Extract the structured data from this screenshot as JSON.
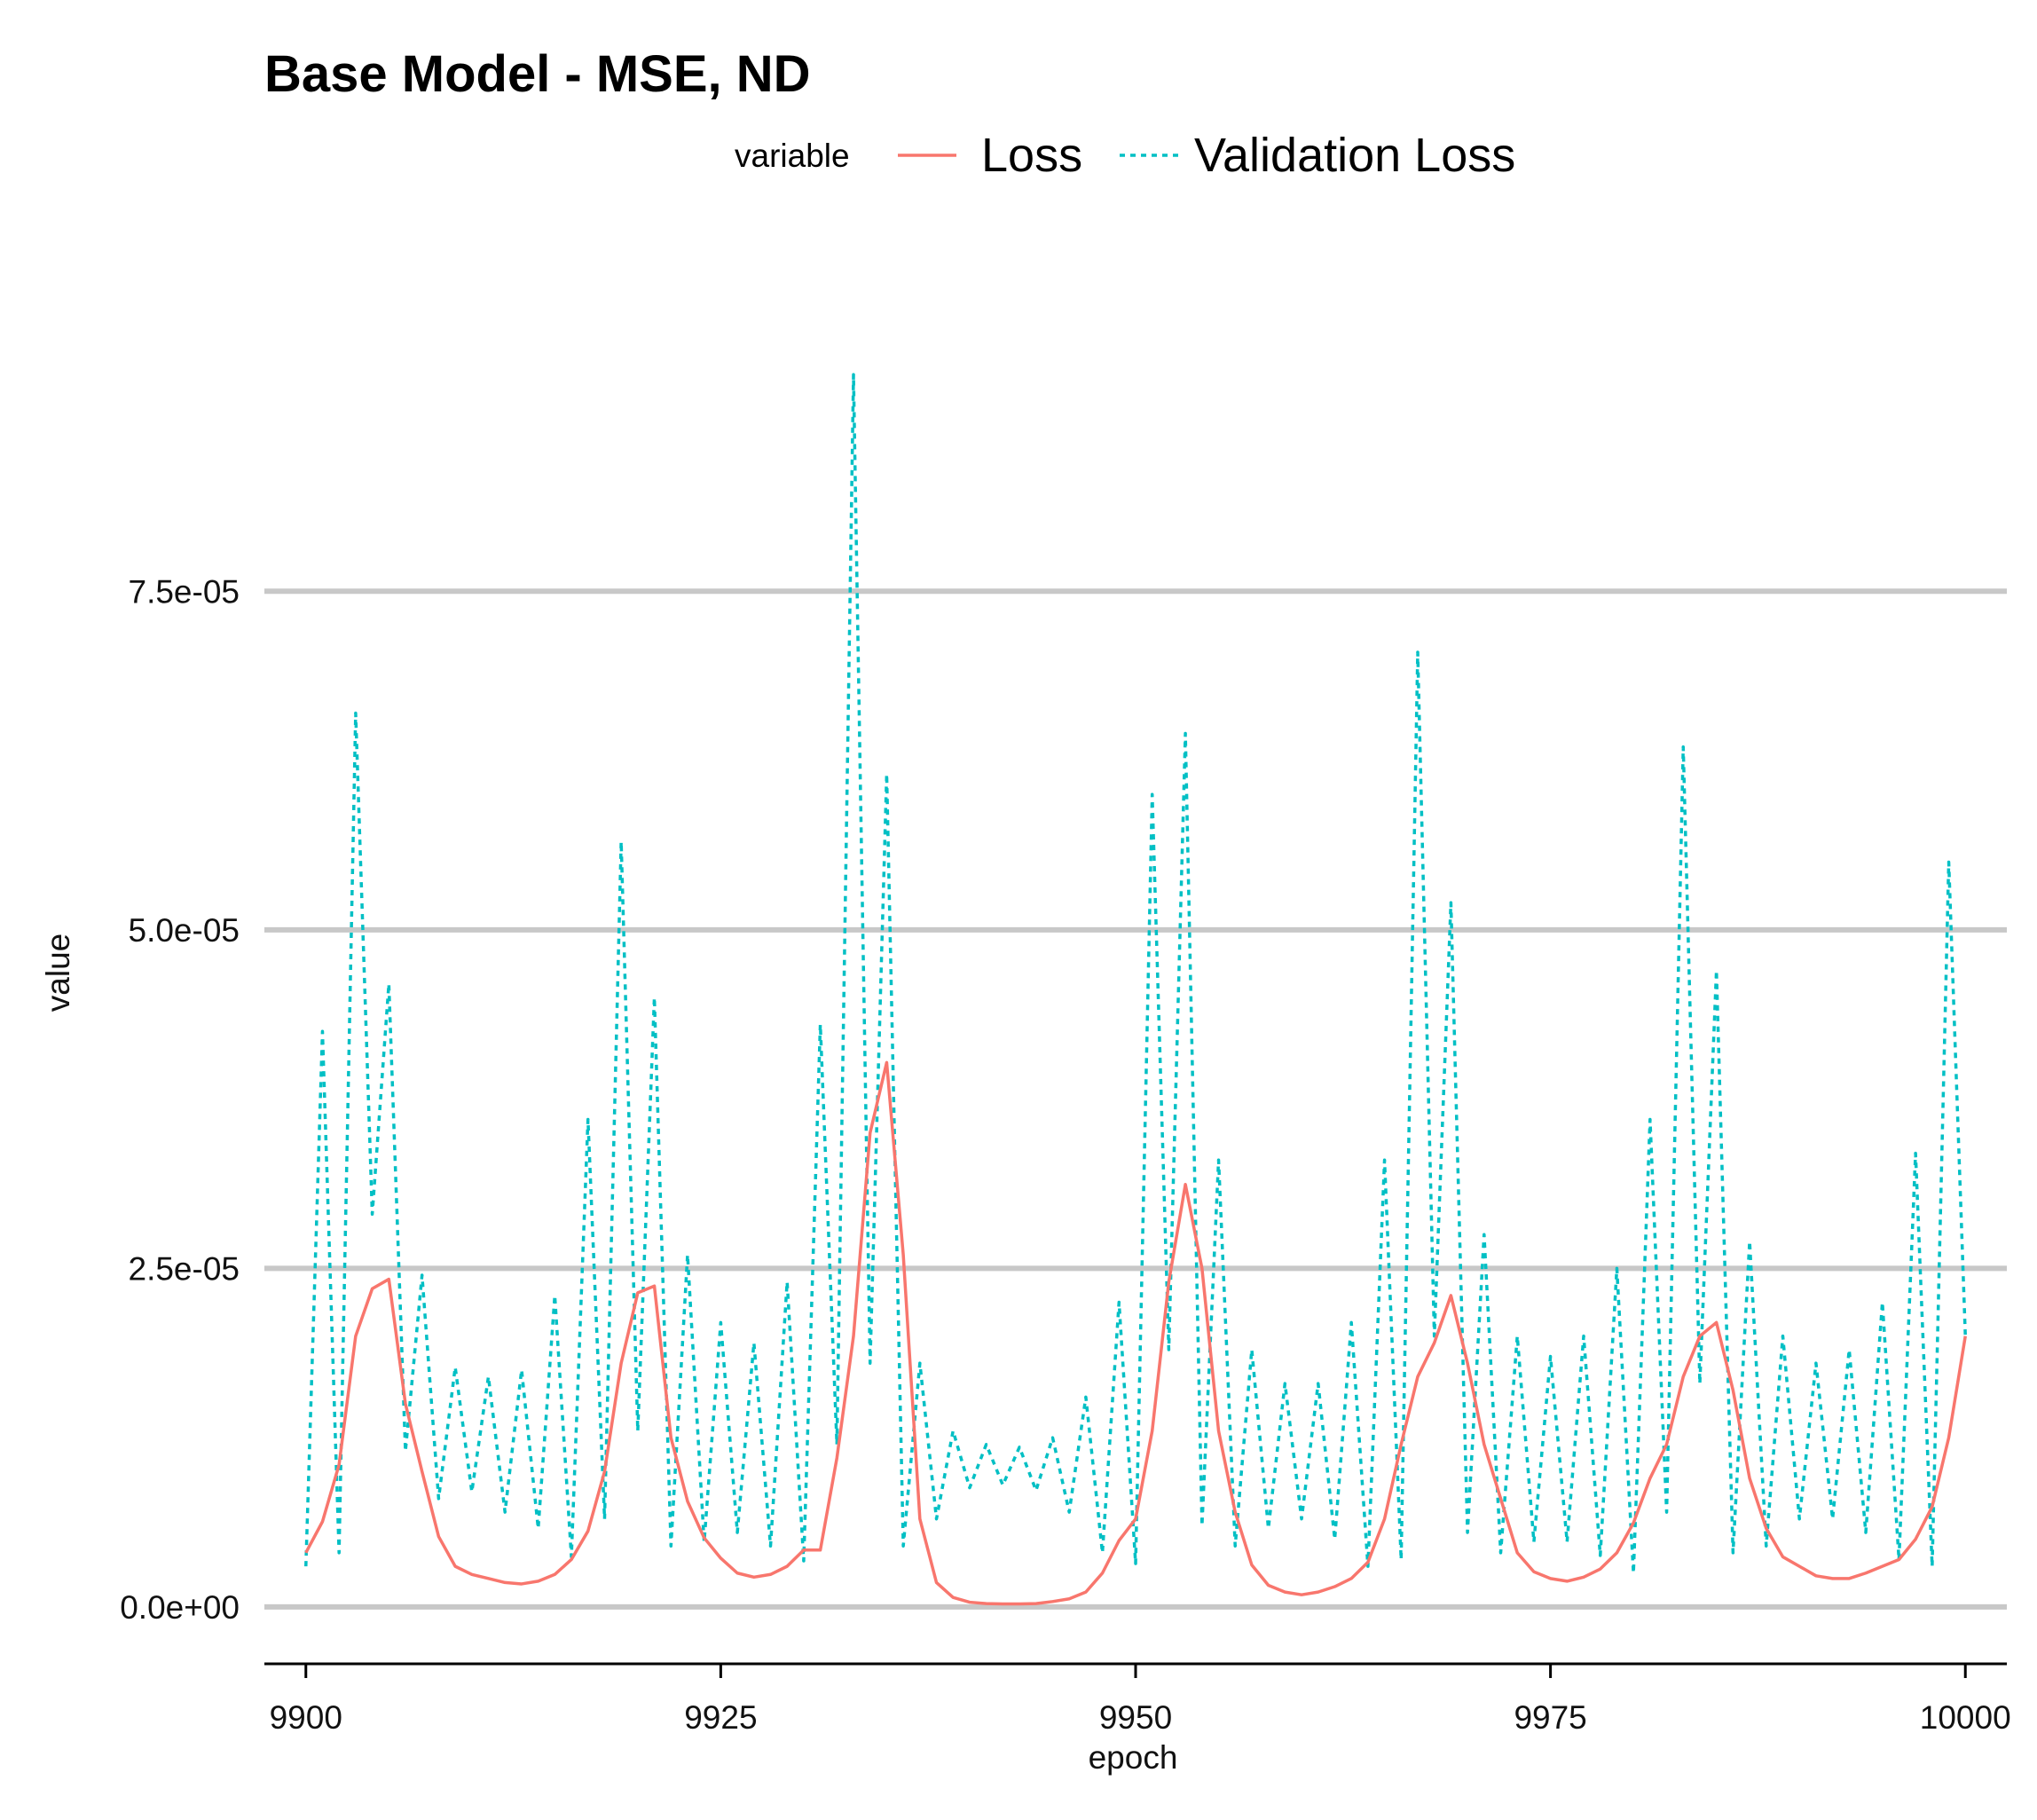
{
  "chart_data": {
    "type": "line",
    "title": "Base Model - MSE, ND",
    "xlabel": "epoch",
    "ylabel": "value",
    "legend_title": "variable",
    "legend_position": "top",
    "grid": "horizontal major",
    "xlim": [
      9897.5,
      10002.5
    ],
    "ylim": [
      -4.2e-06,
      9.9e-05
    ],
    "x_ticks": [
      9900,
      9925,
      9950,
      9975,
      10000
    ],
    "x_tick_labels": [
      "9900",
      "9925",
      "9950",
      "9975",
      "10000"
    ],
    "y_ticks": [
      0,
      2.5e-05,
      5e-05,
      7.5e-05
    ],
    "y_tick_labels": [
      "0.0e+00",
      "2.5e-05",
      "5.0e-05",
      "7.5e-05"
    ],
    "x": [
      9900,
      9901,
      9902,
      9903,
      9904,
      9905,
      9906,
      9907,
      9908,
      9909,
      9910,
      9911,
      9912,
      9913,
      9914,
      9915,
      9916,
      9917,
      9918,
      9919,
      9920,
      9921,
      9922,
      9923,
      9924,
      9925,
      9926,
      9927,
      9928,
      9929,
      9930,
      9931,
      9932,
      9933,
      9934,
      9935,
      9936,
      9937,
      9938,
      9939,
      9940,
      9941,
      9942,
      9943,
      9944,
      9945,
      9946,
      9947,
      9948,
      9949,
      9950,
      9951,
      9952,
      9953,
      9954,
      9955,
      9956,
      9957,
      9958,
      9959,
      9960,
      9961,
      9962,
      9963,
      9964,
      9965,
      9966,
      9967,
      9968,
      9969,
      9970,
      9971,
      9972,
      9973,
      9974,
      9975,
      9976,
      9977,
      9978,
      9979,
      9980,
      9981,
      9982,
      9983,
      9984,
      9985,
      9986,
      9987,
      9988,
      9989,
      9990,
      9991,
      9992,
      9993,
      9994,
      9995,
      9996,
      9997,
      9998,
      9999,
      10000
    ],
    "series": [
      {
        "name": "Loss",
        "color": "#F8766D",
        "linetype": "solid",
        "values": [
          4e-06,
          6.3e-06,
          1.05e-05,
          2e-05,
          2.35e-05,
          2.42e-05,
          1.5e-05,
          1e-05,
          5.2e-06,
          3e-06,
          2.4e-06,
          2.1e-06,
          1.8e-06,
          1.7e-06,
          1.9e-06,
          2.4e-06,
          3.5e-06,
          5.6e-06,
          1e-05,
          1.8e-05,
          2.32e-05,
          2.37e-05,
          1.25e-05,
          7.8e-06,
          5.1e-06,
          3.6e-06,
          2.5e-06,
          2.2e-06,
          2.4e-06,
          3e-06,
          4.2e-06,
          4.2e-06,
          1.1e-05,
          2e-05,
          3.5e-05,
          4.02e-05,
          2.6e-05,
          6.5e-06,
          1.8e-06,
          7e-07,
          3.5e-07,
          2.5e-07,
          2.2e-07,
          2.2e-07,
          2.5e-07,
          4e-07,
          6e-07,
          1.1e-06,
          2.5e-06,
          4.9e-06,
          6.5e-06,
          1.3e-05,
          2.4e-05,
          3.12e-05,
          2.5e-05,
          1.3e-05,
          7e-06,
          3.1e-06,
          1.6e-06,
          1.1e-06,
          9e-07,
          1.1e-06,
          1.5e-06,
          2.1e-06,
          3.3e-06,
          6.5e-06,
          1.2e-05,
          1.7e-05,
          1.95e-05,
          2.3e-05,
          1.8e-05,
          1.2e-05,
          8e-06,
          4e-06,
          2.6e-06,
          2.1e-06,
          1.9e-06,
          2.2e-06,
          2.8e-06,
          4e-06,
          6.2e-06,
          9.5e-06,
          1.2e-05,
          1.7e-05,
          2e-05,
          2.1e-05,
          1.6e-05,
          9.5e-06,
          5.8e-06,
          3.7e-06,
          3e-06,
          2.3e-06,
          2.1e-06,
          2.1e-06,
          2.5e-06,
          3e-06,
          3.5e-06,
          5e-06,
          7.4e-06,
          1.25e-05,
          2e-05
        ]
      },
      {
        "name": "Validation Loss",
        "color": "#00BFC4",
        "linetype": "dashed",
        "values": [
          3e-06,
          4.25e-05,
          4e-06,
          6.6e-05,
          2.9e-05,
          4.6e-05,
          1.15e-05,
          2.45e-05,
          8e-06,
          1.77e-05,
          8.5e-06,
          1.7e-05,
          7e-06,
          1.75e-05,
          5.8e-06,
          2.3e-05,
          3.7e-06,
          3.6e-05,
          6.5e-06,
          5.65e-05,
          1.3e-05,
          4.5e-05,
          4.5e-06,
          2.6e-05,
          4.8e-06,
          2.1e-05,
          5.5e-06,
          1.95e-05,
          4.5e-06,
          2.4e-05,
          3.4e-06,
          4.3e-05,
          1.2e-05,
          9.1e-05,
          1.8e-05,
          6.15e-05,
          4.5e-06,
          1.8e-05,
          6.5e-06,
          1.3e-05,
          8.8e-06,
          1.2e-05,
          9e-06,
          1.18e-05,
          8.6e-06,
          1.25e-05,
          7e-06,
          1.55e-05,
          4e-06,
          2.25e-05,
          3.2e-06,
          6e-05,
          1.9e-05,
          6.45e-05,
          6e-06,
          3.3e-05,
          4.5e-06,
          1.9e-05,
          5.8e-06,
          1.65e-05,
          6.5e-06,
          1.65e-05,
          5e-06,
          2.1e-05,
          3e-06,
          3.3e-05,
          3.5e-06,
          7.05e-05,
          2e-05,
          5.2e-05,
          5.5e-06,
          2.75e-05,
          4e-06,
          2e-05,
          4.8e-06,
          1.85e-05,
          4.8e-06,
          2e-05,
          3.8e-06,
          2.5e-05,
          2.5e-06,
          3.6e-05,
          7e-06,
          6.35e-05,
          1.65e-05,
          4.7e-05,
          4e-06,
          2.7e-05,
          4.5e-06,
          2e-05,
          6.5e-06,
          1.8e-05,
          6.5e-06,
          1.9e-05,
          5.5e-06,
          2.25e-05,
          3.5e-06,
          3.35e-05,
          3e-06,
          5.5e-05,
          2e-05
        ]
      }
    ]
  }
}
